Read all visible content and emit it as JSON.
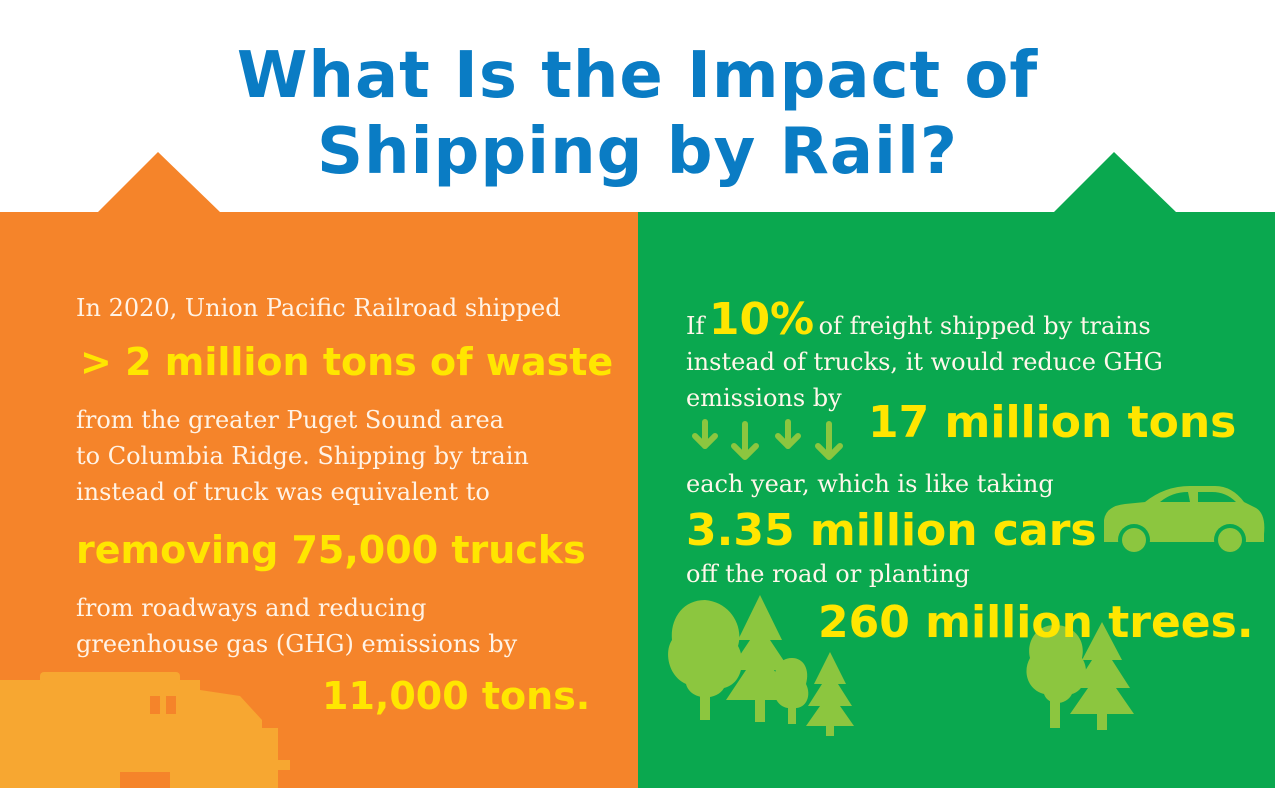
{
  "title": {
    "line1": "What Is the Impact of",
    "line2": "Shipping by Rail?"
  },
  "colors": {
    "title_blue": "#0a7cc4",
    "orange_panel": "#f5842a",
    "green_panel": "#0aa84f",
    "highlight_yellow": "#ffe600",
    "icon_green": "#8cc63f",
    "icon_orange": "#f7a731"
  },
  "left_panel": {
    "text1": "In 2020, Union Pacific Railroad shipped",
    "highlight1": "> 2 million tons of waste",
    "text2_line1": "from the greater Puget Sound area",
    "text2_line2": "to Columbia Ridge. Shipping by train",
    "text2_line3": "instead of truck was equivalent to",
    "highlight2": "removing 75,000 trucks",
    "text3_line1": "from roadways and reducing",
    "text3_line2": "greenhouse gas (GHG) emissions by",
    "highlight3": "11,000 tons.",
    "icon": "train-icon"
  },
  "right_panel": {
    "text1_prefix": "If",
    "highlight_pct": "10%",
    "text1_suffix": "of freight shipped by trains",
    "text1_line2": "instead of trucks, it would reduce GHG",
    "text1_line3": "emissions by",
    "highlight1": "17 million tons",
    "text2": "each year, which is like taking",
    "highlight2": "3.35 million cars",
    "text3": "off the road or planting",
    "highlight3": "260 million trees.",
    "icons": [
      "down-arrow-icon",
      "car-icon",
      "tree-icon"
    ]
  }
}
